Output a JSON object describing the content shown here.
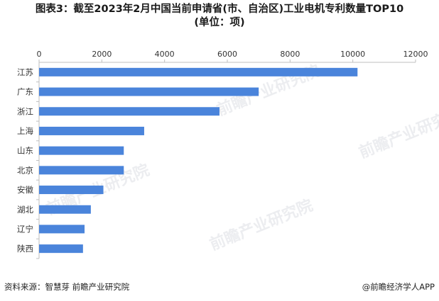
{
  "title_line1": "图表3：截至2023年2月中国当前申请省(市、自治区)工业电机专利数量TOP10",
  "title_line2": "(单位：项)",
  "source": "资料来源：智慧芽 前瞻产业研究院",
  "credit": "@前瞻经济学人APP",
  "watermark": "前瞻产业研究院",
  "colors": {
    "bar": "#4a84db",
    "axis": "#bfbfbf",
    "text": "#333333"
  },
  "chart_data": {
    "type": "bar",
    "orientation": "horizontal",
    "categories": [
      "江苏",
      "广东",
      "浙江",
      "上海",
      "山东",
      "北京",
      "安徽",
      "湖北",
      "辽宁",
      "陕西"
    ],
    "values": [
      10150,
      7000,
      5750,
      3350,
      2700,
      2700,
      2050,
      1650,
      1450,
      1400
    ],
    "xlim": [
      0,
      12000
    ],
    "xticks": [
      0,
      2000,
      4000,
      6000,
      8000,
      10000,
      12000
    ],
    "axis_position": "top",
    "grid": false,
    "legend": "none"
  }
}
